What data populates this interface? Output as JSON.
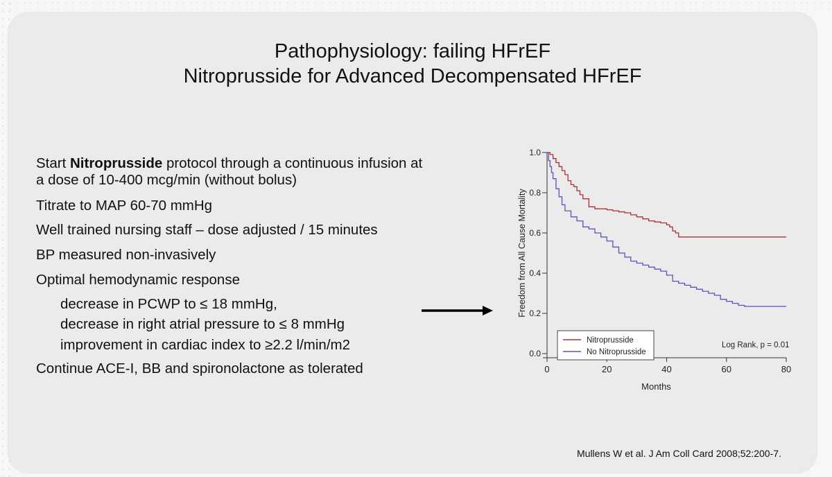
{
  "slide": {
    "title_line1": "Pathophysiology: failing HFrEF",
    "title_line2": "Nitroprusside for Advanced Decompensated HFrEF",
    "bullets": {
      "b1_prefix": "Start ",
      "b1_bold": "Nitroprusside",
      "b1_rest": " protocol through a continuous infusion at",
      "b1_line2": "a dose of 10-400 mcg/min (without bolus)",
      "b2": "Titrate to MAP 60-70 mmHg",
      "b3": "Well trained nursing staff – dose adjusted / 15 minutes",
      "b4": "BP measured non-invasively",
      "b5": "Optimal hemodynamic response",
      "b5a": "decrease in PCWP to ≤ 18 mmHg,",
      "b5b": "decrease in right atrial pressure to ≤ 8 mmHg",
      "b5c": "improvement in cardiac index to ≥2.2 l/min/m2",
      "b6": "Continue ACE-I, BB and spironolactone as tolerated"
    },
    "citation": "Mullens W et al. J Am Coll Card 2008;52:200-7."
  },
  "chart_data": {
    "type": "line",
    "xlabel": "Months",
    "ylabel": "Freedom from All Cause Mortality",
    "xlim": [
      0,
      80
    ],
    "ylim": [
      0,
      1.0
    ],
    "xticks": [
      "0",
      "20",
      "40",
      "60",
      "80"
    ],
    "yticks": [
      "0.0",
      "0.2",
      "0.4",
      "0.6",
      "0.8",
      "1.0"
    ],
    "annotation": "Log Rank, p = 0.01",
    "legend_position": "bottom-left",
    "series": [
      {
        "name": "Nitroprusside",
        "color": "#a83232",
        "x": [
          0,
          1,
          2,
          3,
          4,
          5,
          6,
          7,
          8,
          9,
          10,
          11,
          12,
          14,
          16,
          18,
          20,
          22,
          24,
          26,
          28,
          30,
          32,
          34,
          36,
          38,
          40,
          41,
          42,
          43,
          44,
          50,
          60,
          70,
          80
        ],
        "y": [
          1.0,
          0.99,
          0.97,
          0.95,
          0.93,
          0.91,
          0.89,
          0.86,
          0.84,
          0.83,
          0.81,
          0.79,
          0.77,
          0.73,
          0.72,
          0.72,
          0.715,
          0.71,
          0.705,
          0.7,
          0.69,
          0.68,
          0.67,
          0.66,
          0.655,
          0.65,
          0.64,
          0.63,
          0.61,
          0.6,
          0.58,
          0.58,
          0.58,
          0.58,
          0.58
        ]
      },
      {
        "name": "No Nitroprusside",
        "color": "#5555bb",
        "x": [
          0,
          0.5,
          1,
          1.5,
          2,
          3,
          4,
          5,
          6,
          8,
          10,
          12,
          14,
          16,
          18,
          20,
          22,
          24,
          26,
          28,
          30,
          32,
          34,
          36,
          38,
          40,
          42,
          44,
          46,
          48,
          50,
          52,
          54,
          56,
          58,
          60,
          62,
          64,
          66,
          70,
          75,
          80
        ],
        "y": [
          1.0,
          0.96,
          0.93,
          0.9,
          0.87,
          0.82,
          0.78,
          0.74,
          0.71,
          0.68,
          0.66,
          0.63,
          0.62,
          0.6,
          0.58,
          0.56,
          0.53,
          0.5,
          0.48,
          0.46,
          0.45,
          0.44,
          0.43,
          0.42,
          0.41,
          0.39,
          0.36,
          0.35,
          0.34,
          0.33,
          0.32,
          0.31,
          0.3,
          0.29,
          0.27,
          0.26,
          0.25,
          0.24,
          0.235,
          0.235,
          0.235,
          0.235
        ]
      }
    ]
  }
}
